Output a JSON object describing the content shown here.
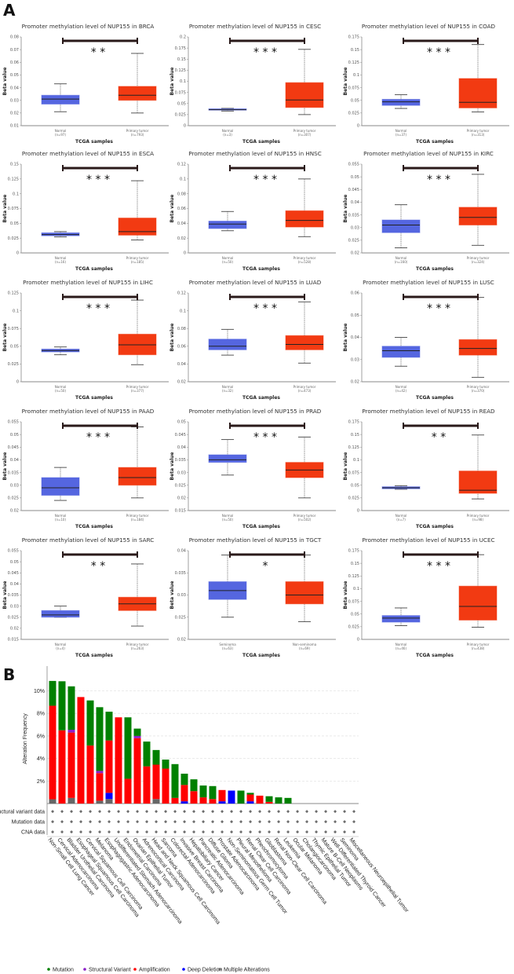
{
  "panel_labels": {
    "a": "A",
    "b": "B"
  },
  "colors": {
    "normal": "#5566e0",
    "tumor": "#f23a12",
    "mutation": "#008000",
    "structural_variant": "#8b1fc7",
    "amplification": "#ff0000",
    "deep_deletion": "#0000ff",
    "multiple_alterations": "#666666"
  },
  "chart_data": [
    {
      "type": "box",
      "title": "Promoter methylation level of NUP155 in BRCA",
      "xlabel": "TCGA samples",
      "ylabel": "Beta value",
      "ylim": [
        0.01,
        0.08
      ],
      "yticks": [
        "0.01",
        "0.02",
        "0.03",
        "0.04",
        "0.05",
        "0.06",
        "0.07",
        "0.08"
      ],
      "groups": [
        {
          "label": "Normal",
          "n": "(n=97)",
          "stats": [
            0.021,
            0.027,
            0.031,
            0.034,
            0.043
          ]
        },
        {
          "label": "Primary tumor",
          "n": "(n=793)",
          "stats": [
            0.02,
            0.03,
            0.034,
            0.041,
            0.067
          ]
        }
      ],
      "significance": "* *"
    },
    {
      "type": "box",
      "title": "Promoter methylation level of NUP155 in CESC",
      "xlabel": "TCGA samples",
      "ylabel": "Beta value",
      "ylim": [
        0,
        0.2
      ],
      "yticks": [
        "0",
        "0.025",
        "0.05",
        "0.075",
        "0.1",
        "0.125",
        "0.15",
        "0.175",
        "0.2"
      ],
      "groups": [
        {
          "label": "Normal",
          "n": "(n=3)",
          "stats": [
            0.033,
            0.035,
            0.036,
            0.038,
            0.039
          ]
        },
        {
          "label": "Primary tumor",
          "n": "(n=307)",
          "stats": [
            0.025,
            0.041,
            0.058,
            0.097,
            0.172
          ]
        }
      ],
      "significance": "* * *"
    },
    {
      "type": "box",
      "title": "Promoter methylation level of NUP155 in COAD",
      "xlabel": "TCGA samples",
      "ylabel": "Beta value",
      "ylim": [
        0,
        0.175
      ],
      "yticks": [
        "0",
        "0.025",
        "0.05",
        "0.075",
        "0.1",
        "0.125",
        "0.15",
        "0.175"
      ],
      "groups": [
        {
          "label": "Normal",
          "n": "(n=37)",
          "stats": [
            0.034,
            0.04,
            0.047,
            0.052,
            0.061
          ]
        },
        {
          "label": "Primary tumor",
          "n": "(n=313)",
          "stats": [
            0.027,
            0.035,
            0.046,
            0.093,
            0.16
          ]
        }
      ],
      "significance": "* * *"
    },
    {
      "type": "box",
      "title": "Promoter methylation level of NUP155 in ESCA",
      "xlabel": "TCGA samples",
      "ylabel": "Beta value",
      "ylim": [
        0,
        0.15
      ],
      "yticks": [
        "0",
        "0.025",
        "0.05",
        "0.075",
        "0.1",
        "0.125",
        "0.15"
      ],
      "groups": [
        {
          "label": "Normal",
          "n": "(n=16)",
          "stats": [
            0.027,
            0.029,
            0.031,
            0.034,
            0.036
          ]
        },
        {
          "label": "Primary tumor",
          "n": "(n=185)",
          "stats": [
            0.022,
            0.03,
            0.036,
            0.059,
            0.122
          ]
        }
      ],
      "significance": "* * *"
    },
    {
      "type": "box",
      "title": "Promoter methylation level of NUP155 in HNSC",
      "xlabel": "TCGA samples",
      "ylabel": "Beta value",
      "ylim": [
        0,
        0.12
      ],
      "yticks": [
        "0",
        "0.02",
        "0.04",
        "0.06",
        "0.08",
        "0.1",
        "0.12"
      ],
      "groups": [
        {
          "label": "Normal",
          "n": "(n=50)",
          "stats": [
            0.03,
            0.033,
            0.039,
            0.043,
            0.056
          ]
        },
        {
          "label": "Primary tumor",
          "n": "(n=528)",
          "stats": [
            0.022,
            0.035,
            0.044,
            0.057,
            0.1
          ]
        }
      ],
      "significance": "* * *"
    },
    {
      "type": "box",
      "title": "Promoter methylation level of NUP155 in KIRC",
      "xlabel": "TCGA samples",
      "ylabel": "Beta value",
      "ylim": [
        0.02,
        0.055
      ],
      "yticks": [
        "0.02",
        "0.025",
        "0.03",
        "0.035",
        "0.04",
        "0.045",
        "0.05",
        "0.055"
      ],
      "groups": [
        {
          "label": "Normal",
          "n": "(n=160)",
          "stats": [
            0.022,
            0.028,
            0.031,
            0.033,
            0.039
          ]
        },
        {
          "label": "Primary tumor",
          "n": "(n=324)",
          "stats": [
            0.023,
            0.031,
            0.034,
            0.038,
            0.051
          ]
        }
      ],
      "significance": "* * *"
    },
    {
      "type": "box",
      "title": "Promoter methylation level of NUP155 in LIHC",
      "xlabel": "TCGA samples",
      "ylabel": "Beta value",
      "ylim": [
        0,
        0.125
      ],
      "yticks": [
        "0",
        "0.025",
        "0.05",
        "0.075",
        "0.1",
        "0.125"
      ],
      "groups": [
        {
          "label": "Normal",
          "n": "(n=50)",
          "stats": [
            0.038,
            0.042,
            0.044,
            0.046,
            0.049
          ]
        },
        {
          "label": "Primary tumor",
          "n": "(n=377)",
          "stats": [
            0.024,
            0.038,
            0.052,
            0.067,
            0.115
          ]
        }
      ],
      "significance": "* * *"
    },
    {
      "type": "box",
      "title": "Promoter methylation level of NUP155 in LUAD",
      "xlabel": "TCGA samples",
      "ylabel": "Beta value",
      "ylim": [
        0.02,
        0.12
      ],
      "yticks": [
        "0.02",
        "0.04",
        "0.06",
        "0.08",
        "0.1",
        "0.12"
      ],
      "groups": [
        {
          "label": "Normal",
          "n": "(n=32)",
          "stats": [
            0.05,
            0.056,
            0.06,
            0.068,
            0.079
          ]
        },
        {
          "label": "Primary tumor",
          "n": "(n=473)",
          "stats": [
            0.041,
            0.056,
            0.062,
            0.072,
            0.11
          ]
        }
      ],
      "significance": "* * *"
    },
    {
      "type": "box",
      "title": "Promoter methylation level of NUP155 in LUSC",
      "xlabel": "TCGA samples",
      "ylabel": "Beta value",
      "ylim": [
        0.02,
        0.06
      ],
      "yticks": [
        "0.02",
        "0.03",
        "0.04",
        "0.05",
        "0.06"
      ],
      "groups": [
        {
          "label": "Normal",
          "n": "(n=42)",
          "stats": [
            0.027,
            0.031,
            0.034,
            0.036,
            0.04
          ]
        },
        {
          "label": "Primary tumor",
          "n": "(n=370)",
          "stats": [
            0.022,
            0.032,
            0.035,
            0.039,
            0.058
          ]
        }
      ],
      "significance": "* * *"
    },
    {
      "type": "box",
      "title": "Promoter methylation level of NUP155 in PAAD",
      "xlabel": "TCGA samples",
      "ylabel": "Beta value",
      "ylim": [
        0.02,
        0.055
      ],
      "yticks": [
        "0.02",
        "0.025",
        "0.03",
        "0.035",
        "0.04",
        "0.045",
        "0.05",
        "0.055"
      ],
      "groups": [
        {
          "label": "Normal",
          "n": "(n=10)",
          "stats": [
            0.024,
            0.026,
            0.029,
            0.033,
            0.037
          ]
        },
        {
          "label": "Primary tumor",
          "n": "(n=184)",
          "stats": [
            0.025,
            0.03,
            0.033,
            0.037,
            0.053
          ]
        }
      ],
      "significance": "* * *"
    },
    {
      "type": "box",
      "title": "Promoter methylation level of NUP155 in PRAD",
      "xlabel": "TCGA samples",
      "ylabel": "Beta value",
      "ylim": [
        0.015,
        0.05
      ],
      "yticks": [
        "0.015",
        "0.02",
        "0.025",
        "0.03",
        "0.035",
        "0.04",
        "0.045",
        "0.05"
      ],
      "groups": [
        {
          "label": "Normal",
          "n": "(n=50)",
          "stats": [
            0.029,
            0.034,
            0.035,
            0.037,
            0.043
          ]
        },
        {
          "label": "Primary tumor",
          "n": "(n=502)",
          "stats": [
            0.02,
            0.028,
            0.031,
            0.034,
            0.044
          ]
        }
      ],
      "significance": "* * *"
    },
    {
      "type": "box",
      "title": "Promoter methylation level of NUP155 in READ",
      "xlabel": "TCGA samples",
      "ylabel": "Beta value",
      "ylim": [
        0,
        0.175
      ],
      "yticks": [
        "0",
        "0.025",
        "0.05",
        "0.075",
        "0.1",
        "0.125",
        "0.15",
        "0.175"
      ],
      "groups": [
        {
          "label": "Normal",
          "n": "(n=7)",
          "stats": [
            0.042,
            0.043,
            0.045,
            0.047,
            0.049
          ]
        },
        {
          "label": "Primary tumor",
          "n": "(n=98)",
          "stats": [
            0.023,
            0.034,
            0.04,
            0.078,
            0.149
          ]
        }
      ],
      "significance": "* *"
    },
    {
      "type": "box",
      "title": "Promoter methylation level of NUP155 in SARC",
      "xlabel": "TCGA samples",
      "ylabel": "Beta value",
      "ylim": [
        0.015,
        0.055
      ],
      "yticks": [
        "0.015",
        "0.02",
        "0.025",
        "0.03",
        "0.035",
        "0.04",
        "0.045",
        "0.05",
        "0.055"
      ],
      "groups": [
        {
          "label": "Normal",
          "n": "(n=4)",
          "stats": [
            0.025,
            0.025,
            0.026,
            0.028,
            0.03
          ]
        },
        {
          "label": "Primary tumor",
          "n": "(n=263)",
          "stats": [
            0.021,
            0.028,
            0.031,
            0.034,
            0.049
          ]
        }
      ],
      "significance": "* *"
    },
    {
      "type": "box",
      "title": "Promoter methylation level of NUP155 in TGCT",
      "xlabel": "TCGA samples",
      "ylabel": "Beta value",
      "ylim": [
        0.02,
        0.04
      ],
      "yticks": [
        "0.02",
        "0.025",
        "0.03",
        "0.035",
        "0.04"
      ],
      "groups": [
        {
          "label": "Seminoma",
          "n": "(n=63)",
          "stats": [
            0.025,
            0.029,
            0.031,
            0.033,
            0.039
          ]
        },
        {
          "label": "Non-seminoma",
          "n": "(n=69)",
          "stats": [
            0.024,
            0.028,
            0.03,
            0.033,
            0.039
          ]
        }
      ],
      "significance": "*"
    },
    {
      "type": "box",
      "title": "Promoter methylation level of NUP155 in UCEC",
      "xlabel": "TCGA samples",
      "ylabel": "Beta value",
      "ylim": [
        0,
        0.175
      ],
      "yticks": [
        "0",
        "0.025",
        "0.05",
        "0.075",
        "0.1",
        "0.125",
        "0.15",
        "0.175"
      ],
      "groups": [
        {
          "label": "Normal",
          "n": "(n=46)",
          "stats": [
            0.027,
            0.034,
            0.042,
            0.047,
            0.062
          ]
        },
        {
          "label": "Primary tumor",
          "n": "(n=438)",
          "stats": [
            0.024,
            0.038,
            0.065,
            0.105,
            0.167
          ]
        }
      ],
      "significance": "* * *"
    },
    {
      "type": "bar",
      "stacked": true,
      "ylabel": "Alteration Frequency",
      "ylim": [
        0,
        11.5
      ],
      "yticks": [
        "2%",
        "4%",
        "6%",
        "8%",
        "10%"
      ],
      "grid": true,
      "legend_position": "bottom",
      "series": [
        {
          "name": "Multiple Alterations",
          "key": "multiple_alterations"
        },
        {
          "name": "Deep Deletion",
          "key": "deep_deletion"
        },
        {
          "name": "Amplification",
          "key": "amplification"
        },
        {
          "name": "Structural Variant",
          "key": "structural_variant"
        },
        {
          "name": "Mutation",
          "key": "mutation"
        }
      ],
      "annotation_rows": [
        "Structural variant data",
        "Mutation data",
        "CNA data"
      ],
      "annotation_mark": "+",
      "categories": [
        {
          "name": "Non-Small Cell Lung Cancer",
          "v": [
            0.38,
            0,
            8.3,
            0,
            2.2
          ]
        },
        {
          "name": "Cervical Adenocarcinoma",
          "v": [
            0,
            0,
            6.5,
            0,
            4.35
          ]
        },
        {
          "name": "Bladder Urothelial Carcinoma",
          "v": [
            0.5,
            0,
            5.8,
            0.25,
            3.85
          ]
        },
        {
          "name": "Esophageal Squamous Cell Carcinoma",
          "v": [
            0,
            0,
            9.45,
            0,
            0
          ]
        },
        {
          "name": "Cervical Squamous Cell Carcinoma",
          "v": [
            0,
            0,
            5.15,
            0,
            4.0
          ]
        },
        {
          "name": "Melanoma",
          "v": [
            0.25,
            0,
            2.45,
            0.2,
            5.65
          ]
        },
        {
          "name": "Esophagogastric Adenocarcinoma",
          "v": [
            0.4,
            0.55,
            4.65,
            0,
            2.55
          ]
        },
        {
          "name": "Undifferentiated Stomach Adenocarcinoma",
          "v": [
            0,
            0,
            7.65,
            0,
            0
          ]
        },
        {
          "name": "Endometrial Carcinoma",
          "v": [
            0,
            0,
            2.2,
            0,
            5.45
          ]
        },
        {
          "name": "Ovarian Epithelial Tumor",
          "v": [
            0,
            0,
            5.8,
            0.2,
            0.65
          ]
        },
        {
          "name": "Adrenocortical Carcinoma",
          "v": [
            0,
            0,
            3.3,
            0,
            2.2
          ]
        },
        {
          "name": "Head and Neck Squamous Cell Carcinoma",
          "v": [
            0.4,
            0,
            3.05,
            0,
            1.3
          ]
        },
        {
          "name": "Sarcoma",
          "v": [
            0,
            0,
            3.1,
            0,
            0.8
          ]
        },
        {
          "name": "Colorectal Adenocarcinoma",
          "v": [
            0,
            0,
            0.5,
            0,
            3.0
          ]
        },
        {
          "name": "Invasive Breast Carcinoma",
          "v": [
            0,
            0.2,
            1.45,
            0,
            1.0
          ]
        },
        {
          "name": "Hepatobiliary Cancer",
          "v": [
            0,
            0,
            1.1,
            0,
            1.05
          ]
        },
        {
          "name": "Pancreatic Adenocarcinoma",
          "v": [
            0,
            0,
            0.55,
            0,
            1.05
          ]
        },
        {
          "name": "Diffuse Glioma",
          "v": [
            0,
            0,
            0.4,
            0,
            1.15
          ]
        },
        {
          "name": "Prostate Adenocarcinoma",
          "v": [
            0,
            0.2,
            1.0,
            0,
            0
          ]
        },
        {
          "name": "Non-Seminomatous Germ Cell Tumor",
          "v": [
            0,
            1.15,
            0,
            0,
            0
          ]
        },
        {
          "name": "Pleural Mesothelioma",
          "v": [
            0,
            0,
            0,
            0,
            1.15
          ]
        },
        {
          "name": "Renal Clear Cell Carcinoma",
          "v": [
            0,
            0.2,
            0.6,
            0,
            0.15
          ]
        },
        {
          "name": "Pheochromocytoma",
          "v": [
            0,
            0,
            0.7,
            0,
            0
          ]
        },
        {
          "name": "Glioblastoma",
          "v": [
            0,
            0,
            0.15,
            0,
            0.5
          ]
        },
        {
          "name": "Renal Non-Clear Cell Carcinoma",
          "v": [
            0,
            0,
            0,
            0,
            0.55
          ]
        },
        {
          "name": "Leukemia",
          "v": [
            0,
            0,
            0,
            0,
            0.5
          ]
        },
        {
          "name": "Ocular Melanoma",
          "v": [
            0,
            0,
            0,
            0,
            0
          ]
        },
        {
          "name": "Cholangiocarcinoma",
          "v": [
            0,
            0,
            0,
            0,
            0
          ]
        },
        {
          "name": "Thymic Epithelial Tumor",
          "v": [
            0,
            0,
            0,
            0,
            0
          ]
        },
        {
          "name": "Mature B-Cell Neoplasms",
          "v": [
            0,
            0,
            0,
            0,
            0
          ]
        },
        {
          "name": "Well-Differentiated Thyroid Cancer",
          "v": [
            0,
            0,
            0,
            0,
            0
          ]
        },
        {
          "name": "Seminoma",
          "v": [
            0,
            0,
            0,
            0,
            0
          ]
        },
        {
          "name": "Miscellaneous Neuroepithelial Tumor",
          "v": [
            0,
            0,
            0,
            0,
            0
          ]
        }
      ],
      "legend": [
        "Mutation",
        "Structural Variant",
        "Amplification",
        "Deep Deletion",
        "Multiple Alterations"
      ]
    }
  ]
}
